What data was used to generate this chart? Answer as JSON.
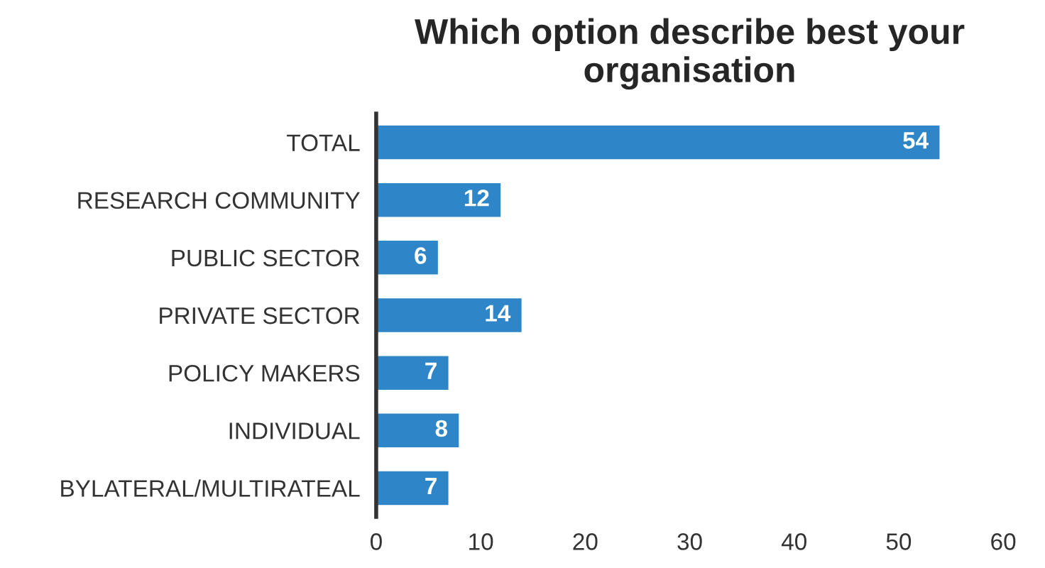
{
  "chart_data": {
    "type": "bar",
    "orientation": "horizontal",
    "title": "Which option describe best your\norganisation",
    "categories": [
      "TOTAL",
      "RESEARCH COMMUNITY",
      "PUBLIC SECTOR",
      "PRIVATE SECTOR",
      "POLICY MAKERS",
      "INDIVIDUAL",
      "BYLATERAL/MULTIRATEAL"
    ],
    "values": [
      54,
      12,
      6,
      14,
      7,
      8,
      7
    ],
    "color": "#2e86c8",
    "xlim": [
      0,
      60
    ],
    "xticks": [
      0,
      10,
      20,
      30,
      40,
      50,
      60
    ],
    "data_labels": true,
    "grid": false,
    "legend": false
  }
}
